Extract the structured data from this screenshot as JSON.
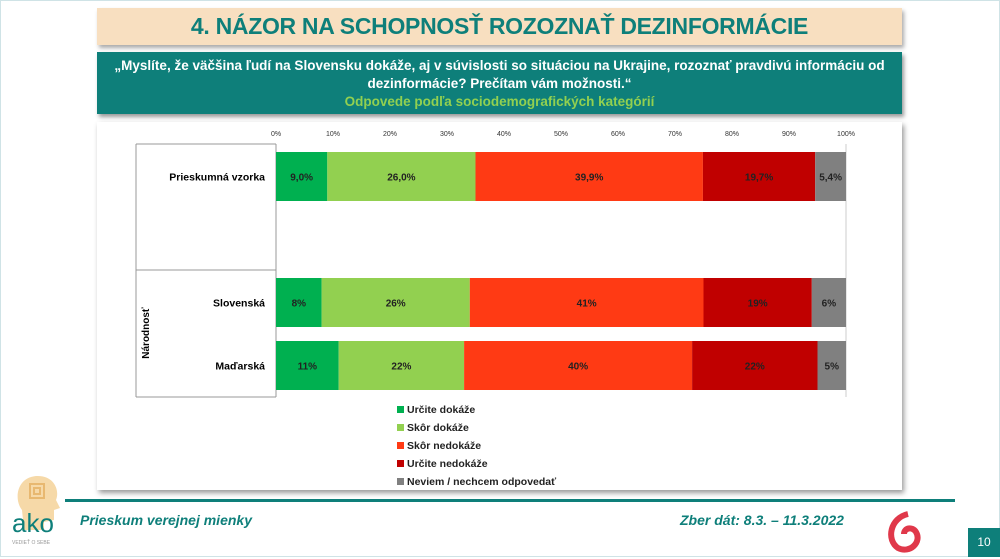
{
  "title": "4. NÁZOR NA SCHOPNOSŤ ROZOZNAŤ DEZINFORMÁCIE",
  "question": {
    "line1": "„Myslíte, že väčšina ľudí na Slovensku dokáže, aj v súvislosti so situáciou na Ukrajine, rozoznať pravdivú informáciu od",
    "line2": "dezinformácie? Prečítam vám možnosti.“",
    "subtitle": "Odpovede podľa sociodemografických kategórií"
  },
  "chart_data": {
    "type": "bar",
    "orientation": "horizontal-stacked-100",
    "xlim": [
      0,
      100
    ],
    "ticks": [
      "0%",
      "10%",
      "20%",
      "30%",
      "40%",
      "50%",
      "60%",
      "70%",
      "80%",
      "90%",
      "100%"
    ],
    "group_label": "Národnosť",
    "categories": [
      "Prieskumná vzorka",
      "Slovenská",
      "Maďarská"
    ],
    "series": [
      {
        "name": "Určite dokáže",
        "color": "#00b050",
        "values": [
          9.0,
          8,
          11
        ],
        "labels": [
          "9,0%",
          "8%",
          "11%"
        ]
      },
      {
        "name": "Skôr dokáže",
        "color": "#92d050",
        "values": [
          26.0,
          26,
          22
        ],
        "labels": [
          "26,0%",
          "26%",
          "22%"
        ]
      },
      {
        "name": "Skôr nedokáže",
        "color": "#ff3a14",
        "values": [
          39.9,
          41,
          40
        ],
        "labels": [
          "39,9%",
          "41%",
          "40%"
        ]
      },
      {
        "name": "Určite nedokáže",
        "color": "#c00000",
        "values": [
          19.7,
          19,
          22
        ],
        "labels": [
          "19,7%",
          "19%",
          "22%"
        ]
      },
      {
        "name": "Neviem / nechcem odpovedať",
        "color": "#808080",
        "values": [
          5.4,
          6,
          5
        ],
        "labels": [
          "5,4%",
          "6%",
          "5%"
        ]
      }
    ],
    "legend_position": "bottom"
  },
  "footer": {
    "left": "Prieskum verejnej mienky",
    "right": "Zber dát: 8.3. – 11.3.2022",
    "page": "10"
  },
  "logo": {
    "text": "ako",
    "tagline": "VEDIEŤ O SEBE"
  }
}
